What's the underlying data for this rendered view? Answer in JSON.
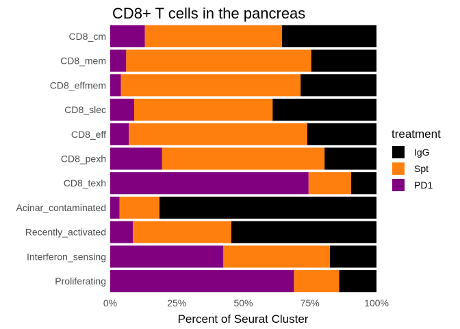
{
  "chart_data": {
    "type": "bar",
    "orientation": "horizontal",
    "stacked": "percent",
    "title": "CD8+ T cells in the pancreas",
    "xlabel": "Percent of Seurat Cluster",
    "ylabel": "",
    "xlim": [
      0,
      100
    ],
    "x_ticks": [
      "0%",
      "25%",
      "50%",
      "75%",
      "100%"
    ],
    "grid": false,
    "legend_position": "right",
    "legend_title": "treatment",
    "categories": [
      "CD8_cm",
      "CD8_mem",
      "CD8_effmem",
      "CD8_slec",
      "CD8_eff",
      "CD8_pexh",
      "CD8_texh",
      "Acinar_contaminated",
      "Recently_activated",
      "Interferon_sensing",
      "Proliferating"
    ],
    "series": [
      {
        "name": "PD1",
        "color": "#800080",
        "values": [
          13,
          6,
          4,
          9,
          7,
          19.5,
          74.5,
          3.5,
          8.5,
          42.5,
          69
        ]
      },
      {
        "name": "Spt",
        "color": "#FF7F0E",
        "values": [
          51.5,
          69.5,
          67.5,
          52,
          67,
          61,
          16,
          15,
          37,
          40,
          17
        ]
      },
      {
        "name": "IgG",
        "color": "#000000",
        "values": [
          35.5,
          24.5,
          28.5,
          39,
          26,
          19.5,
          9.5,
          81.5,
          54.5,
          17.5,
          14
        ]
      }
    ],
    "legend_order": [
      "IgG",
      "Spt",
      "PD1"
    ]
  }
}
